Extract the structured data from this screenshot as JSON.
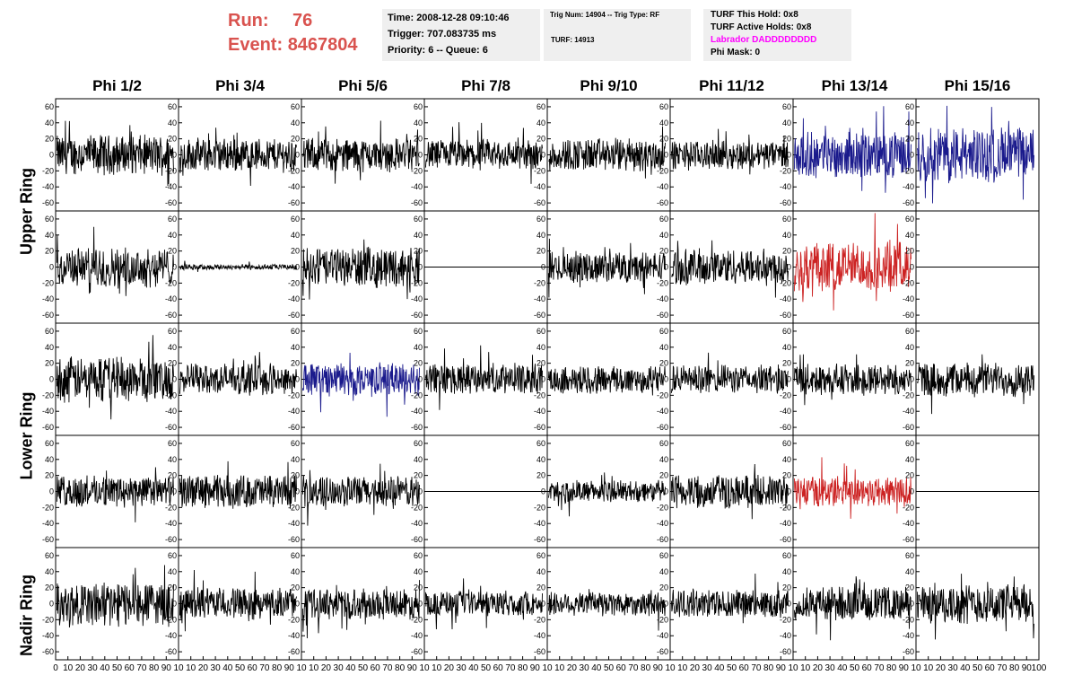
{
  "header": {
    "run_label": "Run:",
    "run_value": "76",
    "event_label": "Event:",
    "event_value": "8467804",
    "time": "Time: 2008-12-28 09:10:46",
    "trigger": "Trigger: 707.083735 ms",
    "priority": "Priority: 6 -- Queue: 6",
    "trig_num": "Trig Num: 14904 -- Trig Type: RF",
    "turf": "TURF: 14913",
    "turf_this_hold": "TURF This Hold: 0x8",
    "turf_active_holds": "TURF Active Holds: 0x8",
    "labrador": "Labrador DADDDDDDDD",
    "phi_mask": "Phi Mask: 0"
  },
  "colors": {
    "header_red": "#d9534f",
    "trace_default": "#000000",
    "trace_blue": "#1a1a8c",
    "trace_red": "#cc2222",
    "labrador_magenta": "#ff00ff",
    "info_box_bg": "#efefef"
  },
  "chart_data": {
    "type": "line",
    "columns": [
      "Phi 1/2",
      "Phi 3/4",
      "Phi 5/6",
      "Phi 7/8",
      "Phi 9/10",
      "Phi 11/12",
      "Phi 13/14",
      "Phi 15/16"
    ],
    "rows": [
      "Upper Ring",
      "Upper Ring",
      "Lower Ring",
      "Lower Ring",
      "Nadir Ring"
    ],
    "row_labels": [
      "Upper Ring",
      "Lower Ring",
      "Nadir Ring"
    ],
    "ylim": [
      -70,
      70
    ],
    "yticks": [
      -60,
      -40,
      -20,
      0,
      20,
      40,
      60
    ],
    "xlim": [
      0,
      100
    ],
    "xticks": [
      0,
      10,
      20,
      30,
      40,
      50,
      60,
      70,
      80,
      90,
      100
    ],
    "xtick_labels_last_column": [
      "0",
      "10",
      "20",
      "30",
      "40",
      "50",
      "60",
      "70",
      "80",
      "90",
      "100"
    ],
    "xtick_labels_other_columns": [
      "0",
      "10",
      "20",
      "30",
      "40",
      "50",
      "60",
      "70",
      "80",
      "90",
      "10"
    ],
    "samples": 260,
    "amplitude": [
      [
        14,
        12,
        12,
        11,
        12,
        10,
        16,
        20
      ],
      [
        14,
        2,
        14,
        0,
        11,
        13,
        18,
        0
      ],
      [
        16,
        11,
        12,
        11,
        10,
        10,
        11,
        12
      ],
      [
        11,
        12,
        11,
        0,
        8,
        12,
        11,
        0
      ],
      [
        16,
        11,
        11,
        9,
        9,
        10,
        12,
        14
      ]
    ],
    "color_key": [
      [
        "k",
        "k",
        "k",
        "k",
        "k",
        "k",
        "b",
        "b"
      ],
      [
        "k",
        "k",
        "k",
        "k",
        "k",
        "k",
        "r",
        "k"
      ],
      [
        "k",
        "k",
        "b",
        "k",
        "k",
        "k",
        "k",
        "k"
      ],
      [
        "k",
        "k",
        "k",
        "k",
        "k",
        "k",
        "r",
        "k"
      ],
      [
        "k",
        "k",
        "k",
        "k",
        "k",
        "k",
        "k",
        "k"
      ]
    ]
  }
}
